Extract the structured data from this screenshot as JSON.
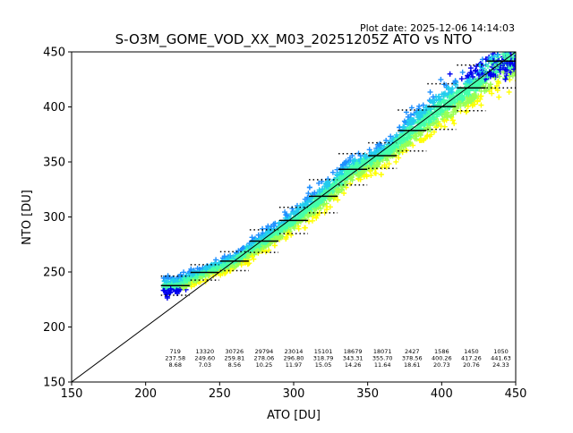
{
  "plot_date": "Plot date: 2025-12-06 14:14:03",
  "chart_data": {
    "type": "scatter",
    "title": "S-O3M_GOME_VOD_XX_M03_20251205Z ATO vs NTO",
    "xlabel": "ATO [DU]",
    "ylabel": "NTO [DU]",
    "xlim": [
      150,
      450
    ],
    "ylim": [
      150,
      450
    ],
    "xticks": [
      150,
      200,
      250,
      300,
      350,
      400,
      450
    ],
    "yticks": [
      150,
      200,
      250,
      300,
      350,
      400,
      450
    ],
    "grid": false,
    "reference_line": {
      "x": [
        150,
        450
      ],
      "y": [
        150,
        450
      ]
    },
    "bins": [
      {
        "x": 220,
        "count": "719",
        "mean": "237.58",
        "std": "8.68",
        "mean_val": 237.58,
        "std_val": 8.68
      },
      {
        "x": 240,
        "count": "13320",
        "mean": "249.60",
        "std": "7.03",
        "mean_val": 249.6,
        "std_val": 7.03
      },
      {
        "x": 260,
        "count": "30726",
        "mean": "259.81",
        "std": "8.56",
        "mean_val": 259.81,
        "std_val": 8.56
      },
      {
        "x": 280,
        "count": "29794",
        "mean": "278.06",
        "std": "10.25",
        "mean_val": 278.06,
        "std_val": 10.25
      },
      {
        "x": 300,
        "count": "23014",
        "mean": "296.80",
        "std": "11.97",
        "mean_val": 296.8,
        "std_val": 11.97
      },
      {
        "x": 320,
        "count": "15101",
        "mean": "318.79",
        "std": "15.05",
        "mean_val": 318.79,
        "std_val": 15.05
      },
      {
        "x": 340,
        "count": "18679",
        "mean": "343.31",
        "std": "14.26",
        "mean_val": 343.31,
        "std_val": 14.26
      },
      {
        "x": 360,
        "count": "18071",
        "mean": "355.70",
        "std": "11.64",
        "mean_val": 355.7,
        "std_val": 11.64
      },
      {
        "x": 380,
        "count": "2427",
        "mean": "378.56",
        "std": "18.61",
        "mean_val": 378.56,
        "std_val": 18.61
      },
      {
        "x": 400,
        "count": "1586",
        "mean": "400.26",
        "std": "20.73",
        "mean_val": 400.26,
        "std_val": 20.73
      },
      {
        "x": 420,
        "count": "1450",
        "mean": "417.26",
        "std": "20.76",
        "mean_val": 417.26,
        "std_val": 20.76
      },
      {
        "x": 440,
        "count": "1050",
        "mean": "441.63",
        "std": "24.33",
        "mean_val": 441.63,
        "std_val": 24.33
      }
    ],
    "density_colors": [
      "#0000ee",
      "#1e90ff",
      "#22ccee",
      "#44ffaa",
      "#99ff55",
      "#ffff00"
    ]
  }
}
